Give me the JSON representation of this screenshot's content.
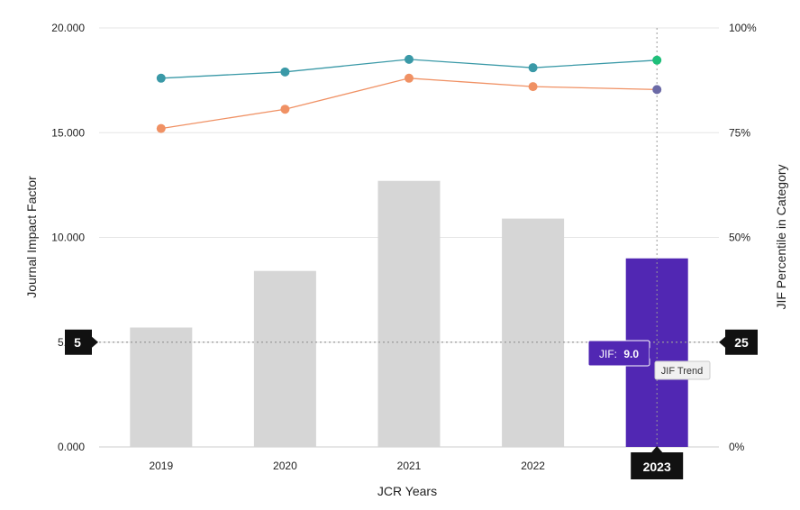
{
  "chart_data": {
    "type": "bar",
    "categories": [
      "2019",
      "2020",
      "2021",
      "2022",
      "2023"
    ],
    "xlabel": "JCR Years",
    "ylabel": "Journal Impact Factor",
    "y2label": "JIF Percentile in Category",
    "ylim": [
      0,
      20
    ],
    "y2lim": [
      0,
      100
    ],
    "y_ticks": [
      "0.000",
      "5.000",
      "10.000",
      "15.000",
      "20.000"
    ],
    "y2_ticks": [
      "0%",
      "25%",
      "50%",
      "75%",
      "100%"
    ],
    "bars": {
      "values": [
        5.7,
        8.4,
        12.7,
        10.9,
        9.0
      ],
      "color": "#d6d6d6",
      "highlight_color": "#5127b3",
      "highlight_index": 4
    },
    "lines": [
      {
        "values": [
          88,
          89.5,
          92.5,
          90.5,
          92.3
        ],
        "color": "#3a99a7",
        "last_marker_color": "#1fbf7a"
      },
      {
        "values": [
          76,
          80.6,
          88,
          86,
          85.3
        ],
        "color": "#f09164",
        "last_marker_color": "#6b6aa6"
      }
    ],
    "grid": true,
    "annotations": {
      "left_value": "5",
      "right_value": "25",
      "x_selected": "2023",
      "tooltip_label": "JIF:",
      "tooltip_value": "9.0",
      "trend_label": "JIF Trend"
    }
  }
}
